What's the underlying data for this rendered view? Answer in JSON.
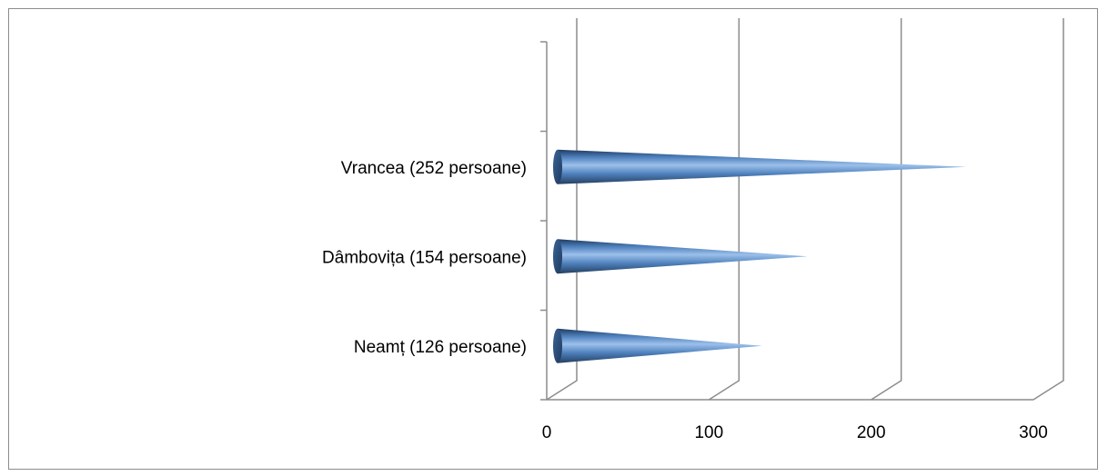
{
  "chart_data": {
    "type": "bar",
    "style": "3d-cone-horizontal",
    "title": "",
    "xlabel": "",
    "ylabel": "",
    "categories": [
      "Neamț (126 persoane)",
      "Dâmbovița  (154 persoane)",
      "Vrancea (252 persoane)"
    ],
    "values": [
      126,
      154,
      252
    ],
    "xlim": [
      0,
      300
    ],
    "xticks": [
      "0",
      "100",
      "200",
      "300"
    ],
    "grid": true,
    "legend": "none",
    "colors": {
      "bar": "#4f81bd",
      "bar_dark": "#243f60",
      "grid": "#8c8c8c"
    }
  }
}
